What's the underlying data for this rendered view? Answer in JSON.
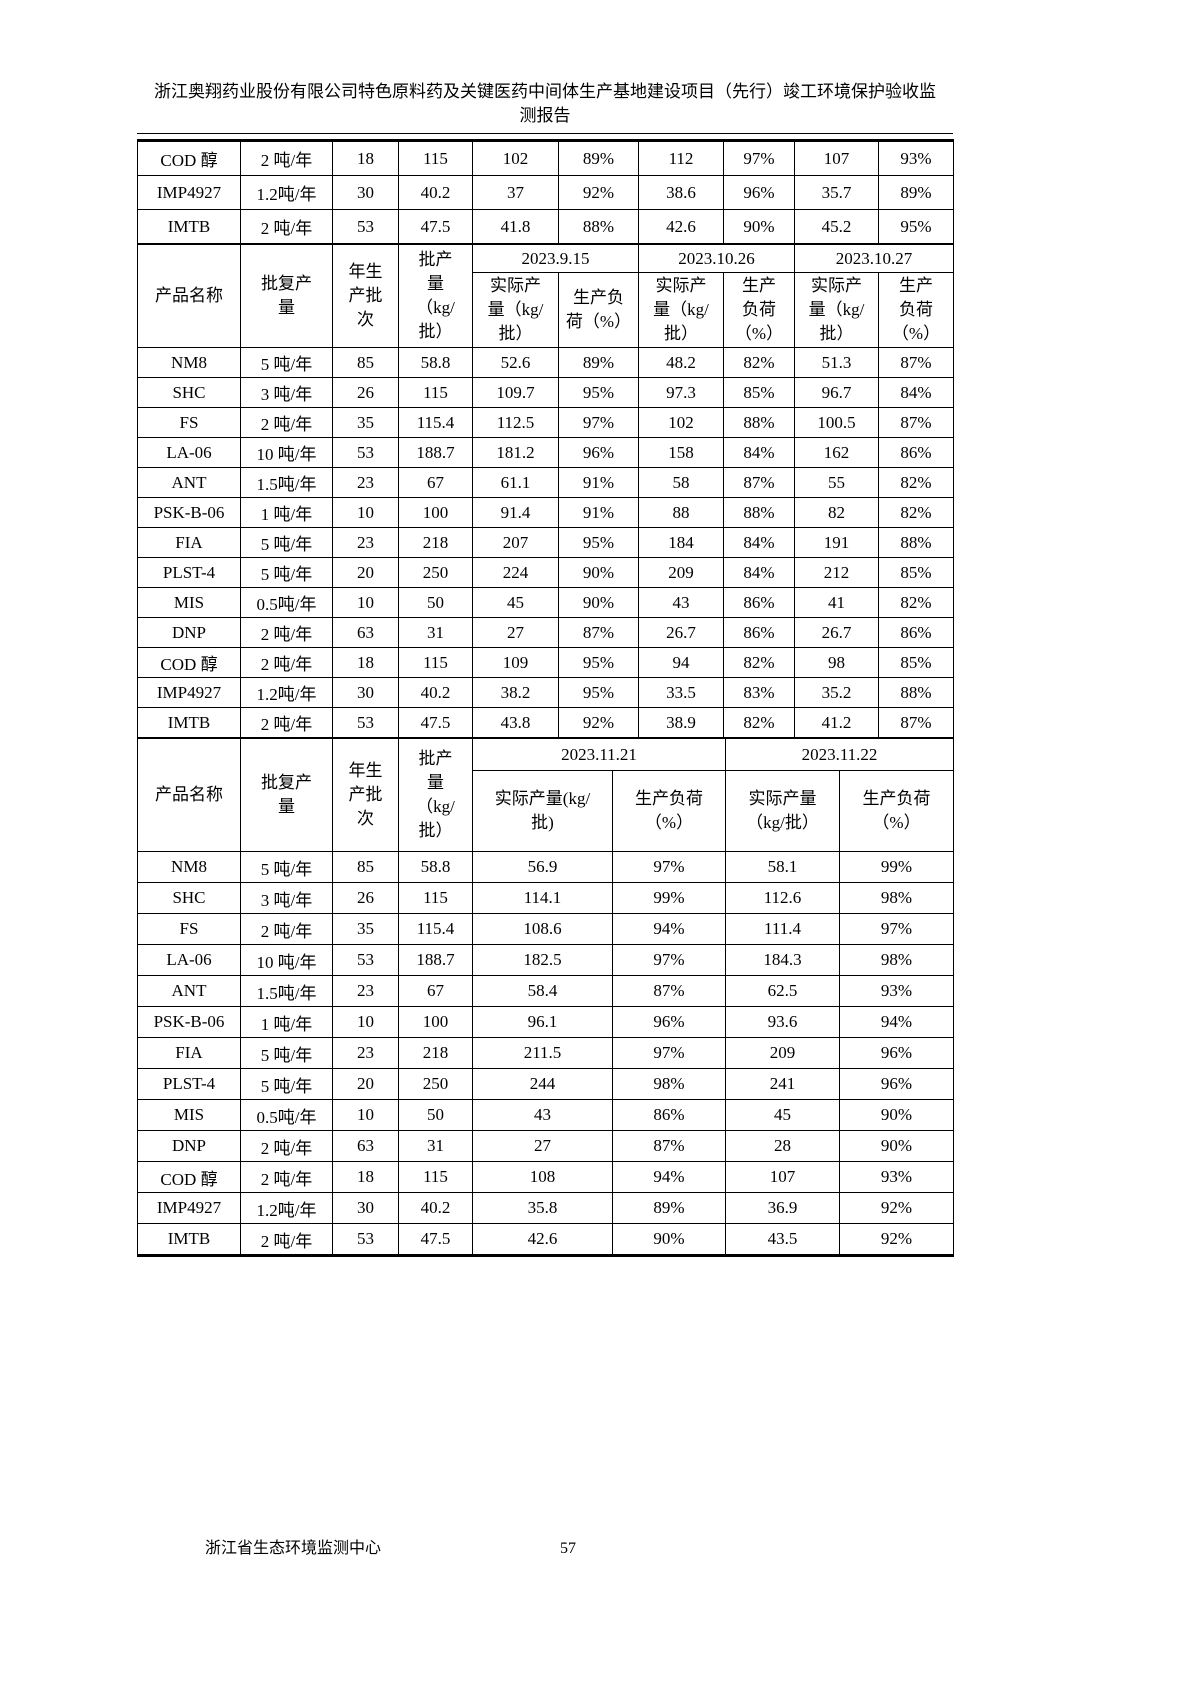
{
  "doc": {
    "title": "浙江奥翔药业股份有限公司特色原料药及关键医药中间体生产基地建设项目（先行）竣工环境保护验收监\n测报告"
  },
  "footer": {
    "organization": "浙江省生态环境监测中心",
    "page_number": "57"
  },
  "table_common_header": {
    "product": "产品名称",
    "approved_output": "批复产\n量",
    "annual_batches": "年生\n产批\n次",
    "batch_output": "批产\n量\n（kg/\n批）"
  },
  "continuation_table": {
    "rows": [
      [
        "COD 醇",
        "2 吨/年",
        "18",
        "115",
        "102",
        "89%",
        "112",
        "97%",
        "107",
        "93%"
      ],
      [
        "IMP4927",
        "1.2吨/年",
        "30",
        "40.2",
        "37",
        "92%",
        "38.6",
        "96%",
        "35.7",
        "89%"
      ],
      [
        "IMTB",
        "2 吨/年",
        "53",
        "47.5",
        "41.8",
        "88%",
        "42.6",
        "90%",
        "45.2",
        "95%"
      ]
    ]
  },
  "sep_oct_table": {
    "dates": [
      "2023.9.15",
      "2023.10.26",
      "2023.10.27"
    ],
    "sub": {
      "actual": "实际产\n量（kg/\n批）",
      "load_wide": "生产负\n荷（%）",
      "load": "生产\n负荷\n（%）"
    },
    "rows": [
      [
        "NM8",
        "5 吨/年",
        "85",
        "58.8",
        "52.6",
        "89%",
        "48.2",
        "82%",
        "51.3",
        "87%"
      ],
      [
        "SHC",
        "3 吨/年",
        "26",
        "115",
        "109.7",
        "95%",
        "97.3",
        "85%",
        "96.7",
        "84%"
      ],
      [
        "FS",
        "2 吨/年",
        "35",
        "115.4",
        "112.5",
        "97%",
        "102",
        "88%",
        "100.5",
        "87%"
      ],
      [
        "LA-06",
        "10 吨/年",
        "53",
        "188.7",
        "181.2",
        "96%",
        "158",
        "84%",
        "162",
        "86%"
      ],
      [
        "ANT",
        "1.5吨/年",
        "23",
        "67",
        "61.1",
        "91%",
        "58",
        "87%",
        "55",
        "82%"
      ],
      [
        "PSK-B-06",
        "1 吨/年",
        "10",
        "100",
        "91.4",
        "91%",
        "88",
        "88%",
        "82",
        "82%"
      ],
      [
        "FIA",
        "5 吨/年",
        "23",
        "218",
        "207",
        "95%",
        "184",
        "84%",
        "191",
        "88%"
      ],
      [
        "PLST-4",
        "5 吨/年",
        "20",
        "250",
        "224",
        "90%",
        "209",
        "84%",
        "212",
        "85%"
      ],
      [
        "MIS",
        "0.5吨/年",
        "10",
        "50",
        "45",
        "90%",
        "43",
        "86%",
        "41",
        "82%"
      ],
      [
        "DNP",
        "2 吨/年",
        "63",
        "31",
        "27",
        "87%",
        "26.7",
        "86%",
        "26.7",
        "86%"
      ],
      [
        "COD 醇",
        "2 吨/年",
        "18",
        "115",
        "109",
        "95%",
        "94",
        "82%",
        "98",
        "85%"
      ],
      [
        "IMP4927",
        "1.2吨/年",
        "30",
        "40.2",
        "38.2",
        "95%",
        "33.5",
        "83%",
        "35.2",
        "88%"
      ],
      [
        "IMTB",
        "2 吨/年",
        "53",
        "47.5",
        "43.8",
        "92%",
        "38.9",
        "82%",
        "41.2",
        "87%"
      ]
    ]
  },
  "nov_table": {
    "dates": [
      "2023.11.21",
      "2023.11.22"
    ],
    "sub": {
      "actual_1": "实际产量(kg/\n批)",
      "load_1": "生产负荷\n（%）",
      "actual_2": "实际产量\n（kg/批）",
      "load_2": "生产负荷\n（%）"
    },
    "rows": [
      [
        "NM8",
        "5 吨/年",
        "85",
        "58.8",
        "56.9",
        "97%",
        "58.1",
        "99%"
      ],
      [
        "SHC",
        "3 吨/年",
        "26",
        "115",
        "114.1",
        "99%",
        "112.6",
        "98%"
      ],
      [
        "FS",
        "2 吨/年",
        "35",
        "115.4",
        "108.6",
        "94%",
        "111.4",
        "97%"
      ],
      [
        "LA-06",
        "10 吨/年",
        "53",
        "188.7",
        "182.5",
        "97%",
        "184.3",
        "98%"
      ],
      [
        "ANT",
        "1.5吨/年",
        "23",
        "67",
        "58.4",
        "87%",
        "62.5",
        "93%"
      ],
      [
        "PSK-B-06",
        "1 吨/年",
        "10",
        "100",
        "96.1",
        "96%",
        "93.6",
        "94%"
      ],
      [
        "FIA",
        "5 吨/年",
        "23",
        "218",
        "211.5",
        "97%",
        "209",
        "96%"
      ],
      [
        "PLST-4",
        "5 吨/年",
        "20",
        "250",
        "244",
        "98%",
        "241",
        "96%"
      ],
      [
        "MIS",
        "0.5吨/年",
        "10",
        "50",
        "43",
        "86%",
        "45",
        "90%"
      ],
      [
        "DNP",
        "2 吨/年",
        "63",
        "31",
        "27",
        "87%",
        "28",
        "90%"
      ],
      [
        "COD 醇",
        "2 吨/年",
        "18",
        "115",
        "108",
        "94%",
        "107",
        "93%"
      ],
      [
        "IMP4927",
        "1.2吨/年",
        "30",
        "40.2",
        "35.8",
        "89%",
        "36.9",
        "92%"
      ],
      [
        "IMTB",
        "2 吨/年",
        "53",
        "47.5",
        "42.6",
        "90%",
        "43.5",
        "92%"
      ]
    ]
  }
}
